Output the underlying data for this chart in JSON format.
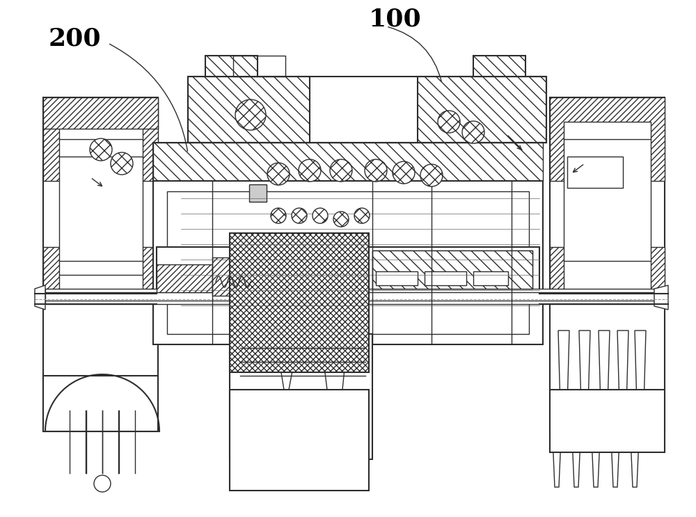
{
  "bg_color": "#ffffff",
  "line_color": "#2d2d2d",
  "label_100": "100",
  "label_200": "200",
  "fig_width": 10.0,
  "fig_height": 7.43,
  "dpi": 100
}
